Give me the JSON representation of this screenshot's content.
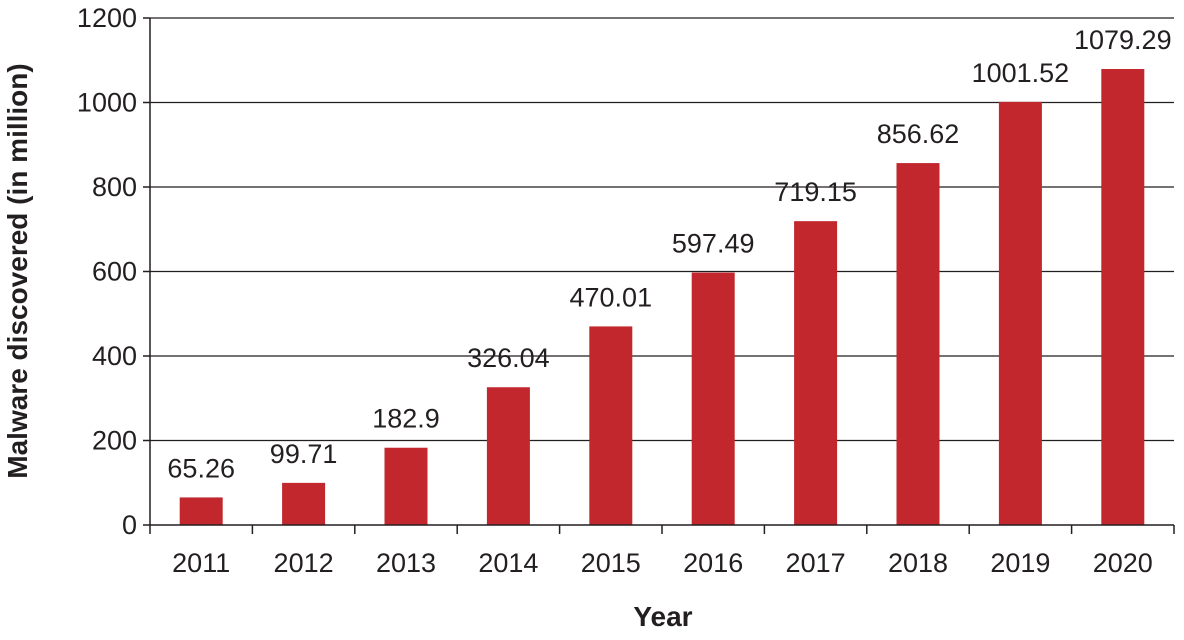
{
  "chart_data": {
    "type": "bar",
    "categories": [
      "2011",
      "2012",
      "2013",
      "2014",
      "2015",
      "2016",
      "2017",
      "2018",
      "2019",
      "2020"
    ],
    "values": [
      65.26,
      99.71,
      182.9,
      326.04,
      470.01,
      597.49,
      719.15,
      856.62,
      1001.52,
      1079.29
    ],
    "data_labels": [
      "65.26",
      "99.71",
      "182.9",
      "326.04",
      "470.01",
      "597.49",
      "719.15",
      "856.62",
      "1001.52",
      "1079.29"
    ],
    "title": "",
    "xlabel": "Year",
    "ylabel": "Malware discovered (in million)",
    "ylim": [
      0,
      1200
    ],
    "yticks": [
      0,
      200,
      400,
      600,
      800,
      1000,
      1200
    ],
    "ytick_labels": [
      "0",
      "200",
      "400",
      "600",
      "800",
      "1000",
      "1200"
    ],
    "grid": "horizontal",
    "bar_color": "#c1272d",
    "gridline_color": "#231f20",
    "text_color": "#231f20"
  }
}
